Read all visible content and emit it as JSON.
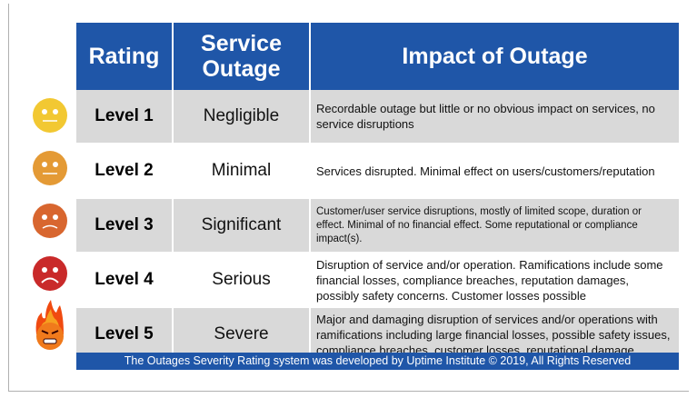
{
  "header": {
    "rating": "Rating",
    "service_outage": "Service Outage",
    "impact": "Impact of Outage"
  },
  "rows": [
    {
      "level": "Level 1",
      "outage": "Negligible",
      "impact": "Recordable outage but little or no obvious impact on services, no service disruptions",
      "icon": "neutral-face-icon",
      "color": "#f2c832"
    },
    {
      "level": "Level 2",
      "outage": "Minimal",
      "impact": "Services disrupted. Minimal effect on users/customers/reputation",
      "icon": "neutral-face-icon",
      "color": "#e49a35"
    },
    {
      "level": "Level 3",
      "outage": "Significant",
      "impact": "Customer/user service disruptions, mostly of limited scope, duration or effect. Minimal of no financial effect. Some reputational or compliance impact(s).",
      "icon": "frown-face-icon",
      "color": "#d8662f"
    },
    {
      "level": "Level 4",
      "outage": "Serious",
      "impact": "Disruption of service and/or operation. Ramifications include some financial losses, compliance breaches, reputation damages, possibly safety concerns. Customer losses possible",
      "icon": "sad-tear-face-icon",
      "color": "#c92a2a"
    },
    {
      "level": "Level 5",
      "outage": "Severe",
      "impact": "Major and damaging disruption of services and/or operations with ramifications including large financial losses, possible safety issues, compliance breaches, customer losses, reputational damage",
      "icon": "angry-fire-face-icon",
      "color": "#f07a1c"
    }
  ],
  "footer": "The Outages Severity Rating system was developed by Uptime Institute © 2019, All Rights Reserved"
}
